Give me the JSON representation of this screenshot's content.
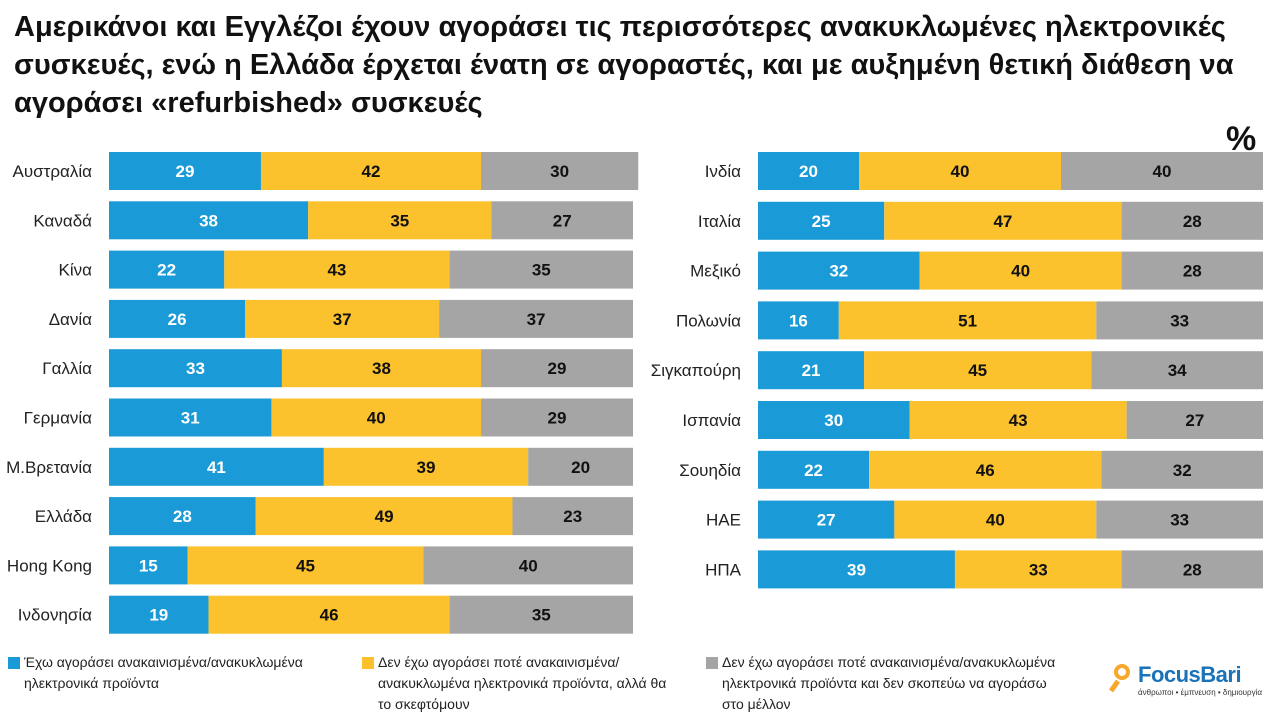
{
  "title": "Αμερικάνοι και Εγγλέζοι έχουν αγοράσει τις περισσότερες ανακυκλωμένες ηλεκτρονικές συσκευές, ενώ η Ελλάδα έρχεται ένατη σε αγοραστές, και με αυξημένη θετική διάθεση να αγοράσει «refurbished» συσκευές",
  "unit_label": "%",
  "colors": {
    "s1": "#1a9ad6",
    "s2": "#fcc22e",
    "s3": "#a5a5a5"
  },
  "chart_data": [
    {
      "type": "bar",
      "orientation": "horizontal-stacked",
      "categories": [
        "Αυστραλία",
        "Καναδά",
        "Κίνα",
        "Δανία",
        "Γαλλία",
        "Γερμανία",
        "Μ.Βρετανία",
        "Ελλάδα",
        "Hong Kong",
        "Ινδονησία"
      ],
      "series": [
        {
          "name": "Έχω αγοράσει ανακαινισμένα/ανακυκλωμένα ηλεκτρονικά προϊόντα",
          "values": [
            29,
            38,
            22,
            26,
            33,
            31,
            41,
            28,
            15,
            19
          ]
        },
        {
          "name": "Δεν έχω αγοράσει ποτέ ανακαινισμένα/ανακυκλωμένα ηλεκτρονικά προϊόντα, αλλά θα το σκεφτόμουν",
          "values": [
            42,
            35,
            43,
            37,
            38,
            40,
            39,
            49,
            45,
            46
          ]
        },
        {
          "name": "Δεν έχω αγοράσει ποτέ ανακαινισμένα/ανακυκλωμένα ηλεκτρονικά προϊόντα και δεν σκοπεύω να αγοράσω στο μέλλον",
          "values": [
            30,
            27,
            35,
            37,
            29,
            29,
            20,
            23,
            40,
            35
          ]
        }
      ]
    },
    {
      "type": "bar",
      "orientation": "horizontal-stacked",
      "categories": [
        "Ινδία",
        "Ιταλία",
        "Μεξικό",
        "Πολωνία",
        "Σιγκαπούρη",
        "Ισπανία",
        "Σουηδία",
        "ΗΑΕ",
        "ΗΠΑ"
      ],
      "series": [
        {
          "name": "Έχω αγοράσει ανακαινισμένα/ανακυκλωμένα ηλεκτρονικά προϊόντα",
          "values": [
            20,
            25,
            32,
            16,
            21,
            30,
            22,
            27,
            39
          ]
        },
        {
          "name": "Δεν έχω αγοράσει ποτέ ανακαινισμένα/ανακυκλωμένα ηλεκτρονικά προϊόντα, αλλά θα το σκεφτόμουν",
          "values": [
            40,
            47,
            40,
            51,
            45,
            43,
            46,
            40,
            33
          ]
        },
        {
          "name": "Δεν έχω αγοράσει ποτέ ανακαινισμένα/ανακυκλωμένα ηλεκτρονικά προϊόντα και δεν σκοπεύω να αγοράσω στο μέλλον",
          "values": [
            40,
            28,
            28,
            33,
            34,
            27,
            32,
            33,
            28
          ]
        }
      ]
    }
  ],
  "legend": [
    "Έχω αγοράσει ανακαινισμένα/ανακυκλωμένα ηλεκτρονικά προϊόντα",
    "Δεν έχω αγοράσει ποτέ ανακαινισμένα/ανακυκλωμένα ηλεκτρονικά προϊόντα, αλλά θα το σκεφτόμουν",
    "Δεν έχω αγοράσει ποτέ ανακαινισμένα/ανακυκλωμένα ηλεκτρονικά προϊόντα και δεν σκοπεύω να αγοράσω στο μέλλον"
  ],
  "logo": {
    "name": "FocusBari",
    "tagline": "άνθρωποι • έμπνευση • δημιουργία"
  }
}
